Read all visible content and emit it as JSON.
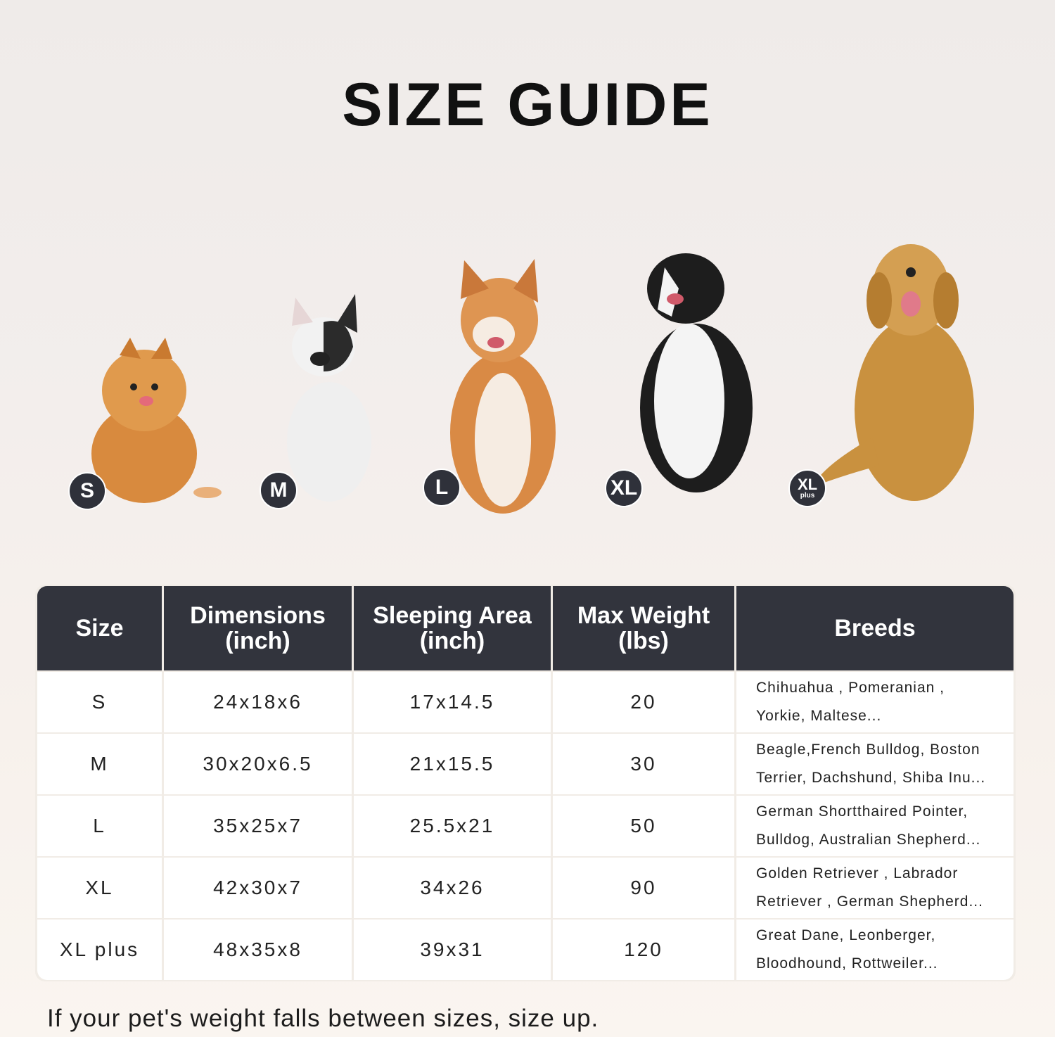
{
  "title": "SIZE GUIDE",
  "dogs": [
    {
      "badge": "S",
      "color": "#d88a3e"
    },
    {
      "badge": "M",
      "color": "#efefef"
    },
    {
      "badge": "L",
      "color": "#d98a45"
    },
    {
      "badge": "XL",
      "color": "#1d1d1d"
    },
    {
      "badge": "XL",
      "badge_sub": "plus",
      "color": "#c9913f"
    }
  ],
  "table": {
    "headers": [
      {
        "line1": "Size",
        "line2": ""
      },
      {
        "line1": "Dimensions",
        "line2": "(inch)"
      },
      {
        "line1": "Sleeping Area",
        "line2": "(inch)"
      },
      {
        "line1": "Max Weight",
        "line2": "(lbs)"
      },
      {
        "line1": "Breeds",
        "line2": ""
      }
    ],
    "rows": [
      {
        "size": "S",
        "dimensions": "24x18x6",
        "sleeping_area": "17x14.5",
        "max_weight": "20",
        "breeds_1": "Chihuahua , Pomeranian ,",
        "breeds_2": "Yorkie, Maltese..."
      },
      {
        "size": "M",
        "dimensions": "30x20x6.5",
        "sleeping_area": "21x15.5",
        "max_weight": "30",
        "breeds_1": "Beagle,French Bulldog, Boston",
        "breeds_2": "Terrier, Dachshund, Shiba Inu..."
      },
      {
        "size": "L",
        "dimensions": "35x25x7",
        "sleeping_area": "25.5x21",
        "max_weight": "50",
        "breeds_1": "German Shortthaired Pointer,",
        "breeds_2": "Bulldog, Australian Shepherd..."
      },
      {
        "size": "XL",
        "dimensions": "42x30x7",
        "sleeping_area": "34x26",
        "max_weight": "90",
        "breeds_1": "Golden Retriever , Labrador",
        "breeds_2": "Retriever , German Shepherd..."
      },
      {
        "size": "XL plus",
        "dimensions": "48x35x8",
        "sleeping_area": "39x31",
        "max_weight": "120",
        "breeds_1": "Great Dane, Leonberger,",
        "breeds_2": "Bloodhound, Rottweiler..."
      }
    ]
  },
  "footer_note": "If your pet's weight falls between sizes, size up.",
  "colors": {
    "header_bg": "#32343d",
    "badge_bg": "#2f313a"
  }
}
